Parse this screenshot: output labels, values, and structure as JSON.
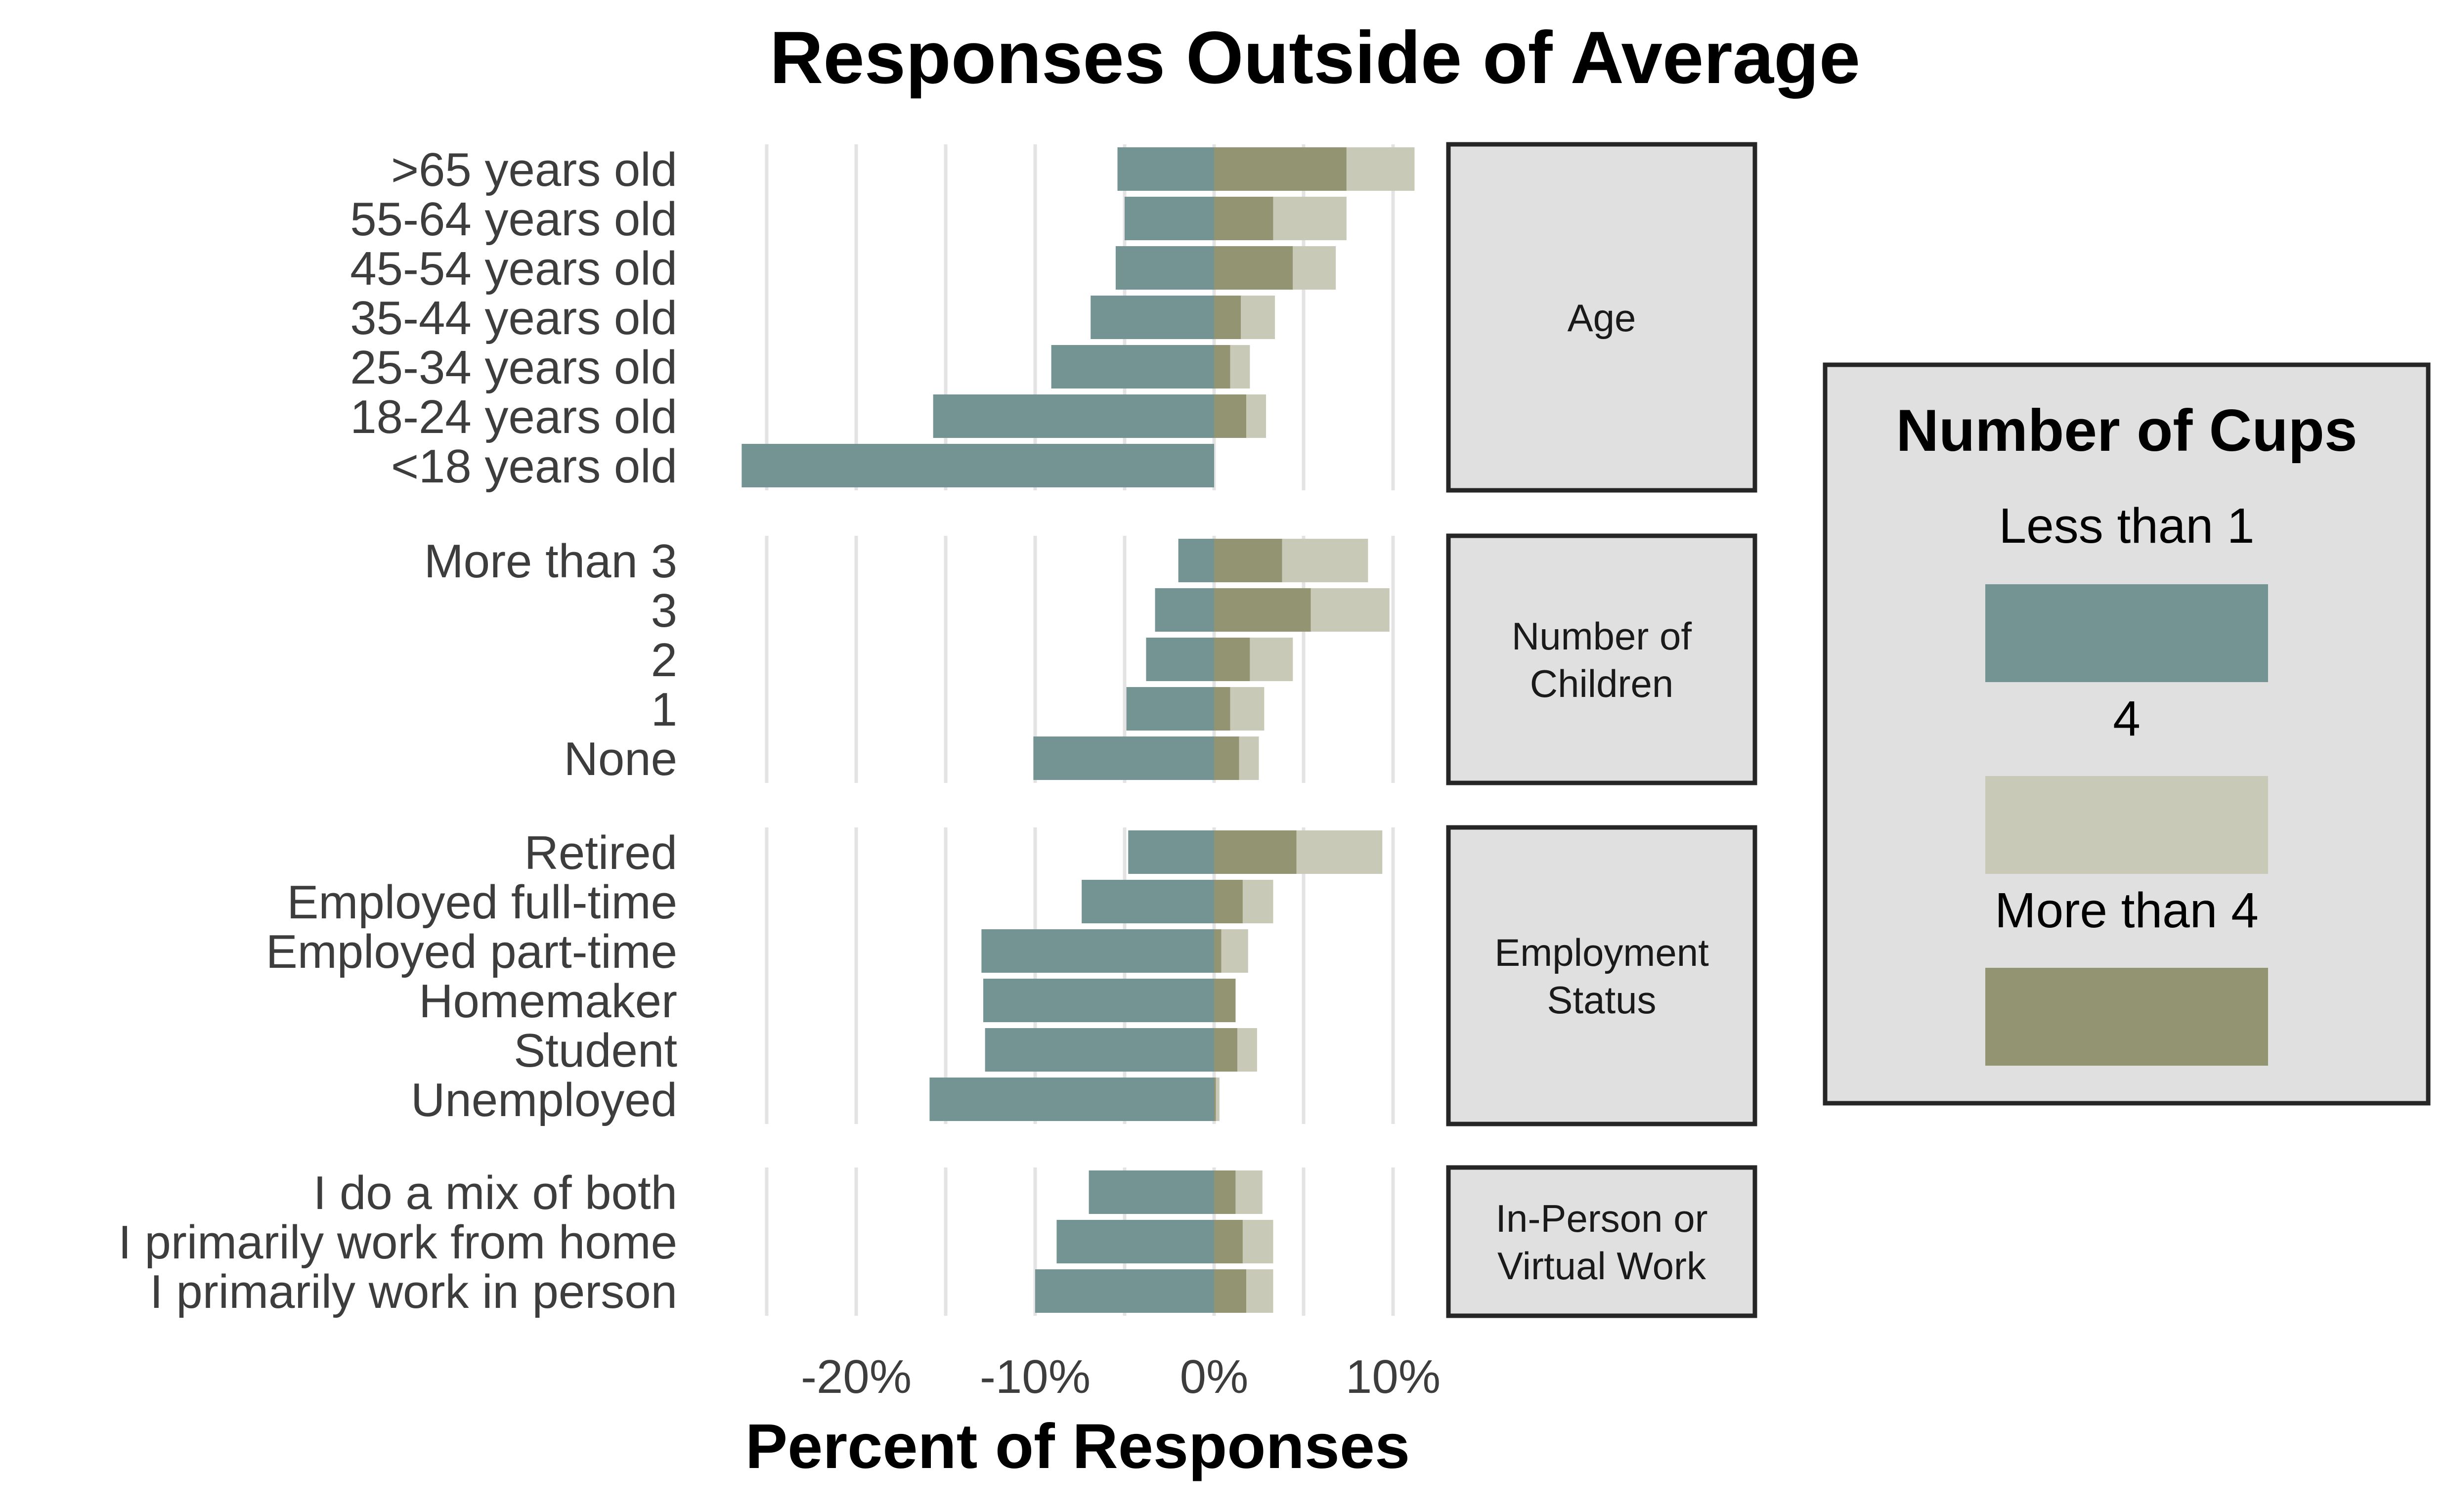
{
  "chart_data": {
    "type": "bar",
    "orientation": "horizontal",
    "stacked": true,
    "title": "Responses Outside of Average",
    "xlabel": "Percent of Responses",
    "ylabel": "",
    "xlim": [
      -26,
      13
    ],
    "x_ticks": [
      -20,
      -10,
      0,
      10
    ],
    "x_tick_labels": [
      "-20%",
      "-10%",
      "0%",
      "10%"
    ],
    "grid": "vertical",
    "legend": {
      "title": "Number of Cups",
      "placement": "right",
      "entries": [
        {
          "name": "Less than 1",
          "color": "#749494"
        },
        {
          "name": "4",
          "color": "#c8c9b6"
        },
        {
          "name": "More than 4",
          "color": "#939572"
        }
      ]
    },
    "panels": [
      {
        "strip": [
          "Age"
        ],
        "categories": [
          ">65 years old",
          "55-64 years old",
          "45-54 years old",
          "35-44 years old",
          "25-34 years old",
          "18-24 years old",
          "<18 years old"
        ],
        "series": [
          {
            "name": "Less than 1",
            "values": [
              -5.4,
              -5.0,
              -5.5,
              -6.9,
              -9.1,
              -15.7,
              -26.4
            ]
          },
          {
            "name": "More than 4",
            "values": [
              7.4,
              3.3,
              4.4,
              1.5,
              0.9,
              1.8,
              0
            ]
          },
          {
            "name": "4",
            "values": [
              3.8,
              4.1,
              2.4,
              1.9,
              1.1,
              1.1,
              0
            ]
          }
        ]
      },
      {
        "strip": [
          "Number of",
          "Children"
        ],
        "categories": [
          "More than 3",
          "3",
          "2",
          "1",
          "None"
        ],
        "series": [
          {
            "name": "Less than 1",
            "values": [
              -2.0,
              -3.3,
              -3.8,
              -4.9,
              -10.1
            ]
          },
          {
            "name": "More than 4",
            "values": [
              3.8,
              5.4,
              2.0,
              0.9,
              1.4
            ]
          },
          {
            "name": "4",
            "values": [
              4.8,
              4.4,
              2.4,
              1.9,
              1.1
            ]
          }
        ]
      },
      {
        "strip": [
          "Employment",
          "Status"
        ],
        "categories": [
          "Retired",
          "Employed full-time",
          "Employed part-time",
          "Homemaker",
          "Student",
          "Unemployed"
        ],
        "series": [
          {
            "name": "Less than 1",
            "values": [
              -4.8,
              -7.4,
              -13.0,
              -12.9,
              -12.8,
              -15.9
            ]
          },
          {
            "name": "More than 4",
            "values": [
              4.6,
              1.6,
              0.4,
              1.2,
              1.3,
              0.1
            ]
          },
          {
            "name": "4",
            "values": [
              4.8,
              1.7,
              1.5,
              0,
              1.1,
              0.2
            ]
          }
        ]
      },
      {
        "strip": [
          "In-Person or",
          "Virtual Work"
        ],
        "categories": [
          "I do a mix of both",
          "I primarily work from home",
          "I primarily work in person"
        ],
        "series": [
          {
            "name": "Less than 1",
            "values": [
              -7.0,
              -8.8,
              -10.0
            ]
          },
          {
            "name": "More than 4",
            "values": [
              1.2,
              1.6,
              1.8
            ]
          },
          {
            "name": "4",
            "values": [
              1.5,
              1.7,
              1.5
            ]
          }
        ]
      }
    ]
  }
}
